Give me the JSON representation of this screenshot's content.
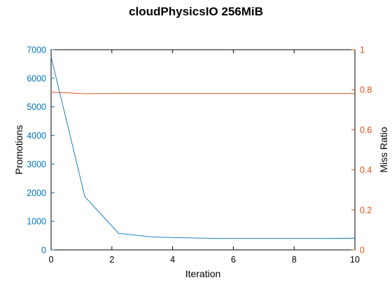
{
  "chart_data": {
    "type": "line",
    "title": "cloudPhysicsIO 256MiB",
    "xlabel": "Iteration",
    "ylabel": "Promotions",
    "y2label": "Miss Ratio",
    "xlim": [
      0,
      10
    ],
    "ylim": [
      0,
      7000
    ],
    "y2lim": [
      0,
      1
    ],
    "x_ticks": [
      "0",
      "2",
      "4",
      "6",
      "8",
      "10"
    ],
    "y_ticks": [
      "0",
      "1000",
      "2000",
      "3000",
      "4000",
      "5000",
      "6000",
      "7000"
    ],
    "y2_ticks": [
      "0",
      "0.2",
      "0.4",
      "0.6",
      "0.8",
      "1"
    ],
    "grid": false,
    "colors": {
      "left_axis": "#0072bd",
      "right_axis": "#d95319",
      "frame": "#000000"
    },
    "series": [
      {
        "axis": "left",
        "color": "#0072bd",
        "x": [
          0,
          1.111,
          2.222,
          3.333,
          4.444,
          5.556,
          6.667,
          7.778,
          8.889,
          10
        ],
        "y": [
          6750,
          1860,
          580,
          450,
          420,
          400,
          400,
          400,
          400,
          410
        ]
      },
      {
        "axis": "right",
        "color": "#d95319",
        "x": [
          0,
          0.5,
          1.111,
          2.222,
          3.333,
          4.444,
          5.556,
          6.667,
          7.778,
          8.889,
          10
        ],
        "y": [
          0.788,
          0.785,
          0.78,
          0.781,
          0.781,
          0.781,
          0.781,
          0.781,
          0.781,
          0.781,
          0.781
        ]
      }
    ]
  }
}
